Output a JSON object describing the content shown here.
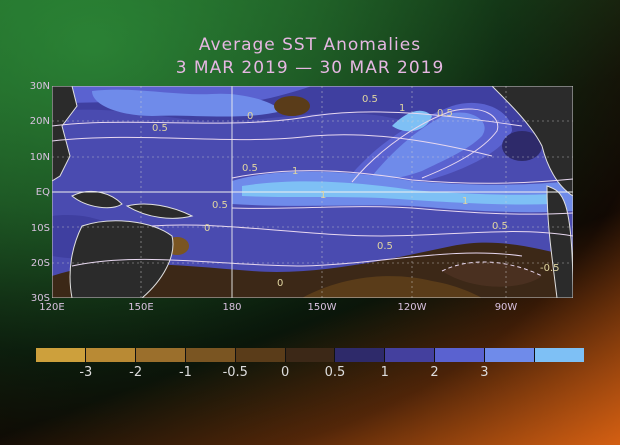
{
  "title": {
    "line1": "Average SST Anomalies",
    "line2": "3 MAR 2019 — 30 MAR 2019"
  },
  "axes": {
    "lat_labels": [
      "30N",
      "20N",
      "10N",
      "EQ",
      "10S",
      "20S",
      "30S"
    ],
    "lon_labels": [
      "120E",
      "150E",
      "180",
      "150W",
      "120W",
      "90W"
    ]
  },
  "legend": {
    "colors": [
      "#cda03c",
      "#b98a34",
      "#9b6f2c",
      "#7a5522",
      "#5a3c19",
      "#3c2817",
      "#2e2a6a",
      "#44409e",
      "#5a62d0",
      "#6f8bea",
      "#7ec0f5"
    ],
    "tick_labels": [
      "-3",
      "-2",
      "-1",
      "-0.5",
      "0",
      "0.5",
      "1",
      "2",
      "3"
    ]
  },
  "map": {
    "contour_labels": [
      "0.5",
      "0.5",
      "0.5",
      "1",
      "1",
      "0",
      "0",
      "0.5",
      "0.5",
      "1",
      "1",
      "0.5",
      "0.5",
      "0",
      "-0.5"
    ]
  }
}
